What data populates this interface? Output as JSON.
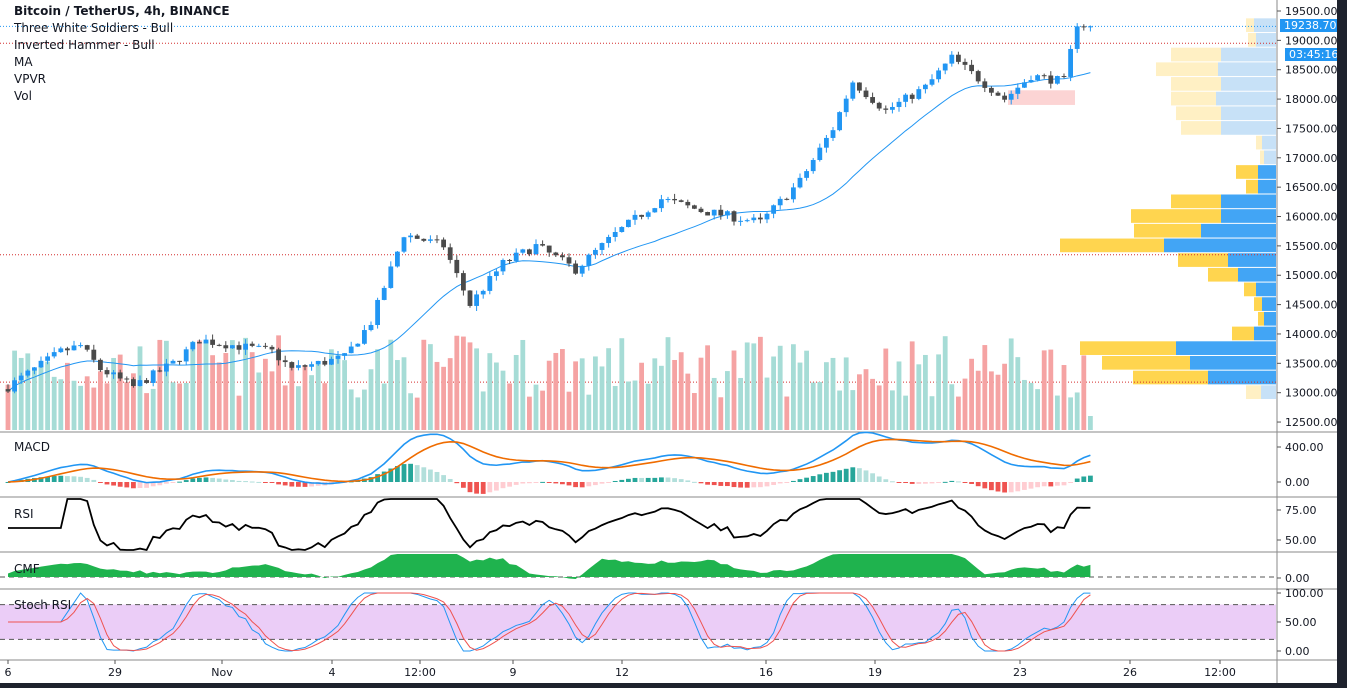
{
  "header": {
    "title": "Bitcoin / TetherUS, 4h, BINANCE",
    "indicators": [
      "Three White Soldiers - Bull",
      "Inverted Hammer - Bull",
      "MA",
      "VPVR",
      "Vol"
    ]
  },
  "panes": {
    "macd": "MACD",
    "rsi": "RSI",
    "cmf": "CMF",
    "stoch": "Stoch RSI"
  },
  "price_axis": {
    "labels": [
      "19500.00",
      "19000.00",
      "18500.00",
      "18000.00",
      "17500.00",
      "17000.00",
      "16500.00",
      "16000.00",
      "15500.00",
      "15000.00",
      "14500.00",
      "14000.00",
      "13500.00",
      "13000.00",
      "12500.00"
    ],
    "current_price": "19238.70",
    "countdown": "03:45:16"
  },
  "indicator_axis": {
    "macd": [
      "400.00",
      "0.00"
    ],
    "rsi": [
      "75.00",
      "50.00"
    ],
    "cmf": [
      "0.00"
    ],
    "stoch": [
      "100.00",
      "50.00",
      "0.00"
    ]
  },
  "time_axis": [
    "6",
    "29",
    "Nov",
    "4",
    "12:00",
    "9",
    "12",
    "16",
    "19",
    "23",
    "26",
    "12:00"
  ],
  "colors": {
    "up": "#2196f3",
    "down": "#4a4a4a",
    "vol_up": "#a6dcd6",
    "vol_down": "#f5a3a3",
    "macd": "#2196f3",
    "signal": "#ef6c00",
    "rsi": "#000000",
    "cmf": "#1fb34e",
    "stoch_k": "#2196f3",
    "stoch_d": "#ef5350",
    "vp_up": "#42a5f5",
    "vp_down": "#ffd54f",
    "vp_up_light": "#c7e1f7",
    "vp_down_light": "#fff0c4"
  },
  "chart_data": {
    "type": "candlestick",
    "symbol": "BTCUSDT",
    "interval": "4h",
    "ylim": [
      12500,
      19500
    ],
    "candle_count": 165,
    "price_path": [
      [
        0,
        13100
      ],
      [
        8,
        13700
      ],
      [
        11,
        13800
      ],
      [
        14,
        13400
      ],
      [
        19,
        13100
      ],
      [
        25,
        13500
      ],
      [
        29,
        13900
      ],
      [
        40,
        13700
      ],
      [
        43,
        13400
      ],
      [
        51,
        13600
      ],
      [
        55,
        14200
      ],
      [
        60,
        15700
      ],
      [
        66,
        15500
      ],
      [
        70,
        14500
      ],
      [
        75,
        15200
      ],
      [
        80,
        15500
      ],
      [
        86,
        15100
      ],
      [
        92,
        15700
      ],
      [
        99,
        16300
      ],
      [
        105,
        16100
      ],
      [
        114,
        15900
      ],
      [
        120,
        16600
      ],
      [
        125,
        17500
      ],
      [
        128,
        18300
      ],
      [
        133,
        17800
      ],
      [
        139,
        18200
      ],
      [
        143,
        18700
      ],
      [
        151,
        18000
      ],
      [
        155,
        18400
      ],
      [
        160,
        18300
      ],
      [
        162,
        19300
      ],
      [
        164,
        19238.7
      ]
    ],
    "ma_period": 20,
    "levels": [
      19238.7,
      18950,
      15350,
      13180
    ],
    "pattern_zone": [
      17900,
      18150
    ],
    "volume_profile": [
      {
        "price": 19250,
        "up": 22,
        "down": 8,
        "value_area": false
      },
      {
        "price": 19000,
        "up": 20,
        "down": 8,
        "value_area": false
      },
      {
        "price": 18750,
        "up": 55,
        "down": 50,
        "value_area": false
      },
      {
        "price": 18500,
        "up": 58,
        "down": 62,
        "value_area": false
      },
      {
        "price": 18250,
        "up": 55,
        "down": 50,
        "value_area": false
      },
      {
        "price": 18000,
        "up": 60,
        "down": 45,
        "value_area": false
      },
      {
        "price": 17750,
        "up": 55,
        "down": 45,
        "value_area": false
      },
      {
        "price": 17500,
        "up": 55,
        "down": 40,
        "value_area": false
      },
      {
        "price": 17250,
        "up": 14,
        "down": 6,
        "value_area": false
      },
      {
        "price": 17000,
        "up": 12,
        "down": 4,
        "value_area": false
      },
      {
        "price": 16750,
        "up": 18,
        "down": 22,
        "value_area": true
      },
      {
        "price": 16500,
        "up": 18,
        "down": 12,
        "value_area": true
      },
      {
        "price": 16250,
        "up": 55,
        "down": 50,
        "value_area": true
      },
      {
        "price": 16000,
        "up": 55,
        "down": 90,
        "value_area": true
      },
      {
        "price": 15750,
        "up": 75,
        "down": 67,
        "value_area": true
      },
      {
        "price": 15500,
        "up": 112,
        "down": 104,
        "value_area": true
      },
      {
        "price": 15250,
        "up": 48,
        "down": 50,
        "value_area": true
      },
      {
        "price": 15000,
        "up": 38,
        "down": 30,
        "value_area": true
      },
      {
        "price": 14750,
        "up": 20,
        "down": 12,
        "value_area": true
      },
      {
        "price": 14500,
        "up": 14,
        "down": 8,
        "value_area": true
      },
      {
        "price": 14250,
        "up": 12,
        "down": 6,
        "value_area": true
      },
      {
        "price": 14000,
        "up": 22,
        "down": 22,
        "value_area": true
      },
      {
        "price": 13750,
        "up": 100,
        "down": 96,
        "value_area": true
      },
      {
        "price": 13500,
        "up": 86,
        "down": 88,
        "value_area": true
      },
      {
        "price": 13250,
        "up": 68,
        "down": 75,
        "value_area": true
      },
      {
        "price": 13000,
        "up": 15,
        "down": 15,
        "value_area": false
      }
    ]
  }
}
